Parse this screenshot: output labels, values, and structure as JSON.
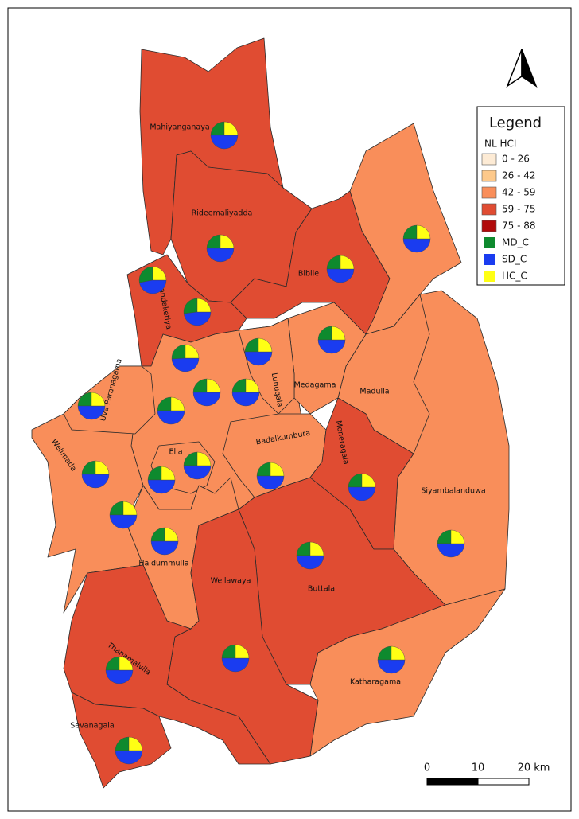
{
  "legend": {
    "title": "Legend",
    "field": "NL HCI",
    "classes": [
      {
        "label": "0 - 26",
        "color": "#fdebd5"
      },
      {
        "label": "26 - 42",
        "color": "#fdc98b"
      },
      {
        "label": "42 - 59",
        "color": "#f98e5a"
      },
      {
        "label": "59 - 75",
        "color": "#e04c32"
      },
      {
        "label": "75 - 88",
        "color": "#b10b0b"
      }
    ],
    "pie_fields": [
      {
        "label": "MD_C",
        "color": "#0e8a2e"
      },
      {
        "label": "SD_C",
        "color": "#1a3cf0"
      },
      {
        "label": "HC_C",
        "color": "#ffff14"
      }
    ]
  },
  "regions": [
    {
      "name": "Mahiyanganaya",
      "color": "#e04c32"
    },
    {
      "name": "Rideemaliyadda",
      "color": "#e04c32"
    },
    {
      "name": "Bibile",
      "color": "#e04c32"
    },
    {
      "name": "Kandaketiya",
      "color": "#e04c32"
    },
    {
      "name": null,
      "color": "#f98e5a"
    },
    {
      "name": null,
      "color": "#f98e5a"
    },
    {
      "name": "Siyambalanduwa",
      "color": "#f98e5a"
    },
    {
      "name": "Madulla",
      "color": "#f98e5a"
    },
    {
      "name": "Medagama",
      "color": "#f98e5a"
    },
    {
      "name": "Welimada",
      "color": "#f98e5a"
    },
    {
      "name": "Uva Paranagama",
      "color": "#f98e5a"
    },
    {
      "name": "Lunugala",
      "color": "#f98e5a"
    },
    {
      "name": "Ella",
      "color": "#f98e5a"
    },
    {
      "name": "Badalkumbura",
      "color": "#f98e5a"
    },
    {
      "name": "Moneragala",
      "color": "#e04c32"
    },
    {
      "name": "Haldummulla",
      "color": "#f98e5a"
    },
    {
      "name": "Buttala",
      "color": "#e04c32"
    },
    {
      "name": "Wellawaya",
      "color": "#e04c32"
    },
    {
      "name": "Katharagama",
      "color": "#f98e5a"
    },
    {
      "name": "Thanamalvila",
      "color": "#e04c32"
    },
    {
      "name": "Sevanagala",
      "color": "#e04c32"
    }
  ],
  "pies": [
    {
      "values": [
        25,
        50,
        25
      ]
    },
    {
      "values": [
        25,
        50,
        25
      ]
    },
    {
      "values": [
        28,
        47,
        25
      ]
    },
    {
      "values": [
        25,
        50,
        25
      ]
    },
    {
      "values": [
        25,
        50,
        25
      ]
    },
    {
      "values": [
        27,
        48,
        25
      ]
    },
    {
      "values": [
        25,
        50,
        25
      ]
    },
    {
      "values": [
        25,
        50,
        25
      ]
    },
    {
      "values": [
        26,
        49,
        25
      ]
    },
    {
      "values": [
        25,
        50,
        25
      ]
    },
    {
      "values": [
        25,
        50,
        25
      ]
    },
    {
      "values": [
        25,
        50,
        25
      ]
    },
    {
      "values": [
        25,
        50,
        25
      ]
    },
    {
      "values": [
        25,
        50,
        25
      ]
    },
    {
      "values": [
        25,
        50,
        25
      ]
    },
    {
      "values": [
        25,
        50,
        25
      ]
    },
    {
      "values": [
        25,
        50,
        25
      ]
    },
    {
      "values": [
        25,
        50,
        25
      ]
    },
    {
      "values": [
        25,
        50,
        25
      ]
    },
    {
      "values": [
        25,
        50,
        25
      ]
    },
    {
      "values": [
        25,
        50,
        25
      ]
    },
    {
      "values": [
        25,
        50,
        25
      ]
    },
    {
      "values": [
        25,
        50,
        25
      ]
    },
    {
      "values": [
        25,
        50,
        25
      ]
    },
    {
      "values": [
        25,
        50,
        25
      ]
    },
    {
      "values": [
        25,
        50,
        25
      ]
    }
  ],
  "scale_bar": {
    "ticks": [
      0,
      10,
      {
        "value": 20,
        "label": "20 km"
      }
    ]
  }
}
